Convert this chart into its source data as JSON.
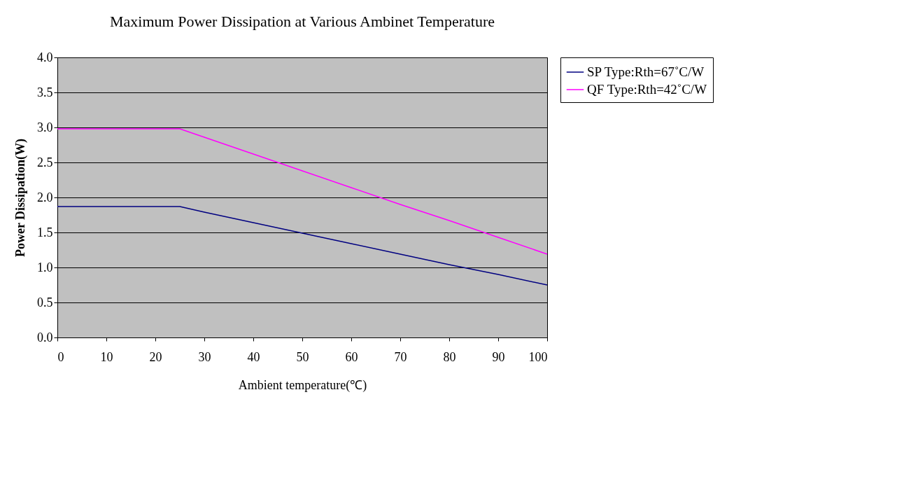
{
  "chart_data": {
    "type": "line",
    "title": "Maximum Power Dissipation at Various Ambinet Temperature",
    "xlabel": "Ambient temperature(℃)",
    "ylabel": "Power Dissipation(W)",
    "x": [
      0,
      10,
      20,
      25,
      30,
      40,
      50,
      60,
      70,
      80,
      90,
      100
    ],
    "series": [
      {
        "name": "SP Type:Rth=67˚C/W",
        "color": "#000080",
        "values": [
          1.87,
          1.87,
          1.87,
          1.87,
          1.79,
          1.64,
          1.49,
          1.34,
          1.19,
          1.04,
          0.9,
          0.75
        ]
      },
      {
        "name": "QF Type:Rth=42˚C/W",
        "color": "#ff00ff",
        "values": [
          2.98,
          2.98,
          2.98,
          2.98,
          2.86,
          2.62,
          2.38,
          2.14,
          1.9,
          1.67,
          1.43,
          1.19
        ]
      }
    ],
    "xlim": [
      0,
      100
    ],
    "xticks": [
      0,
      10,
      20,
      30,
      40,
      50,
      60,
      70,
      80,
      90,
      100
    ],
    "ylim": [
      0,
      4
    ],
    "yticks": [
      {
        "value": 0,
        "label": "0.0"
      },
      {
        "value": 0.5,
        "label": "0.5"
      },
      {
        "value": 1,
        "label": "1.0"
      },
      {
        "value": 1.5,
        "label": "1.5"
      },
      {
        "value": 2,
        "label": "2.0"
      },
      {
        "value": 2.5,
        "label": "2.5"
      },
      {
        "value": 3,
        "label": "3.0"
      },
      {
        "value": 3.5,
        "label": "3.5"
      },
      {
        "value": 4,
        "label": "4.0"
      }
    ],
    "grid": "y",
    "legend": "right",
    "marker": "none",
    "line_style": "solid"
  }
}
